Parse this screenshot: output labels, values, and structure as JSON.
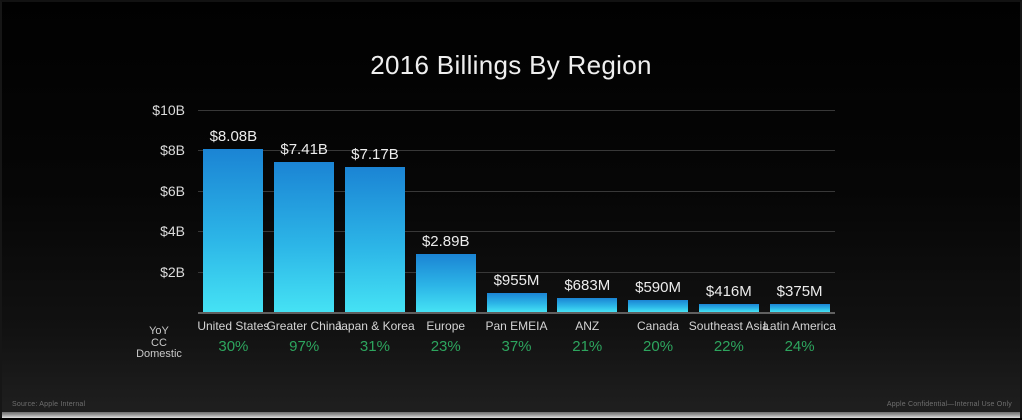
{
  "chart_data": {
    "type": "bar",
    "title": "2016 Billings By Region",
    "categories": [
      "United States",
      "Greater China",
      "Japan & Korea",
      "Europe",
      "Pan EMEIA",
      "ANZ",
      "Canada",
      "Southeast Asia",
      "Latin America"
    ],
    "values_billions": [
      8.08,
      7.41,
      7.17,
      2.89,
      0.955,
      0.683,
      0.59,
      0.416,
      0.375
    ],
    "value_labels": [
      "$8.08B",
      "$7.41B",
      "$7.17B",
      "$2.89B",
      "$955M",
      "$683M",
      "$590M",
      "$416M",
      "$375M"
    ],
    "yoy_cc_domestic_pct": [
      "30%",
      "97%",
      "31%",
      "23%",
      "37%",
      "21%",
      "20%",
      "22%",
      "24%"
    ],
    "row_label_lines": [
      "YoY",
      "CC",
      "Domestic"
    ],
    "y_ticks": [
      {
        "label": "$10B",
        "value": 10
      },
      {
        "label": "$8B",
        "value": 8
      },
      {
        "label": "$6B",
        "value": 6
      },
      {
        "label": "$4B",
        "value": 4
      },
      {
        "label": "$2B",
        "value": 2
      }
    ],
    "ylim": [
      0,
      10
    ],
    "grid": true,
    "legend": "none",
    "colors": {
      "bar_gradient_top": "#1b84d4",
      "bar_gradient_mid": "#2cb5e7",
      "bar_gradient_bottom": "#45e2f4",
      "pct_green": "#2da55e",
      "gridline": "#383838",
      "baseline": "#606060",
      "text": "#ececec"
    }
  },
  "footer": {
    "left": "Source: Apple Internal",
    "right": "Apple Confidential—Internal Use Only"
  }
}
